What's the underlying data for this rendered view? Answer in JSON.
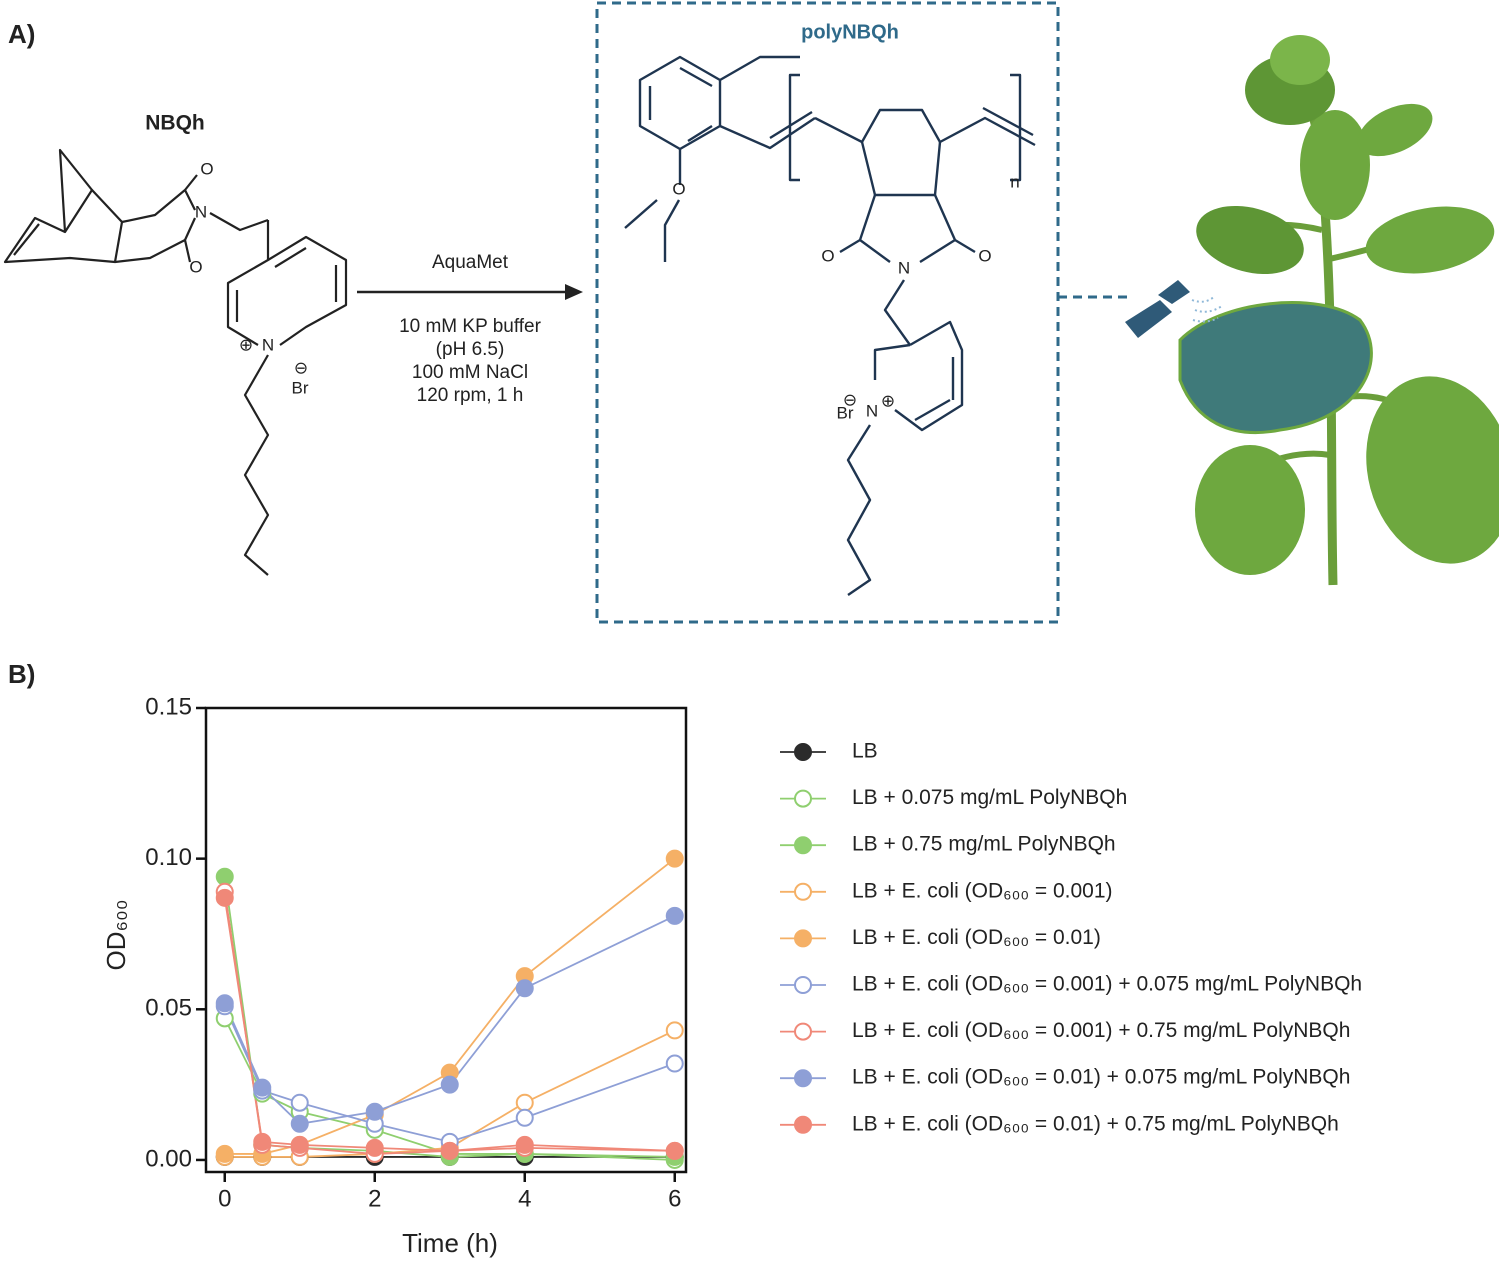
{
  "panel_a": {
    "label": "A)",
    "monomer": {
      "name": "NBQh",
      "atoms": [
        "O",
        "N",
        "O",
        "N",
        "⊕",
        "Br",
        "⊖"
      ]
    },
    "reaction": {
      "catalyst": "AquaMet",
      "conditions": [
        "10 mM KP buffer",
        "(pH 6.5)",
        "100 mM NaCl",
        "120 rpm, 1 h"
      ]
    },
    "polymer": {
      "name": "polyNBQh",
      "atoms": [
        "O",
        "O",
        "N",
        "O",
        "Br",
        "⊖",
        "N",
        "⊕",
        "n"
      ]
    }
  },
  "chart_data": {
    "type": "line",
    "label": "B)",
    "xlabel": "Time (h)",
    "ylabel": "OD₆₀₀",
    "x": [
      0,
      0.5,
      1,
      2,
      3,
      4,
      6
    ],
    "xlim": [
      -0.25,
      6.15
    ],
    "xticks": [
      0,
      2,
      4,
      6
    ],
    "ylim": [
      -0.004,
      0.15
    ],
    "yticks": [
      {
        "value": 0,
        "label": "0.00"
      },
      {
        "value": 0.05,
        "label": "0.05"
      },
      {
        "value": 0.1,
        "label": "0.10"
      },
      {
        "value": 0.15,
        "label": "0.15"
      }
    ],
    "series": [
      {
        "name": "LB",
        "color": "#2b2b2b",
        "filled": true,
        "values": [
          0.001,
          0.001,
          0.001,
          0.001,
          0.001,
          0.001,
          0.001
        ]
      },
      {
        "name": "LB + 0.075 mg/mL PolyNBQh",
        "color": "#8fcf6f",
        "filled": false,
        "values": [
          0.047,
          0.022,
          0.016,
          0.01,
          0.002,
          0.002,
          0.0
        ]
      },
      {
        "name": "LB + 0.75 mg/mL PolyNBQh",
        "color": "#8fcf6f",
        "filled": true,
        "values": [
          0.094,
          0.005,
          0.004,
          0.003,
          0.001,
          0.002,
          0.001
        ]
      },
      {
        "name": "LB + E. coli (OD₆₀₀ = 0.001)",
        "color": "#f5b066",
        "filled": false,
        "values": [
          0.001,
          0.001,
          0.001,
          0.002,
          0.004,
          0.019,
          0.043
        ]
      },
      {
        "name": "LB + E. coli (OD₆₀₀ = 0.01)",
        "color": "#f5b066",
        "filled": true,
        "values": [
          0.002,
          0.002,
          0.005,
          0.015,
          0.029,
          0.061,
          0.1
        ]
      },
      {
        "name": "LB + E. coli (OD₆₀₀ = 0.001) + 0.075 mg/mL PolyNBQh",
        "color": "#8e9fd6",
        "filled": false,
        "values": [
          0.051,
          0.023,
          0.019,
          0.012,
          0.006,
          0.014,
          0.032
        ]
      },
      {
        "name": "LB + E. coli (OD₆₀₀ = 0.001) + 0.75 mg/mL PolyNBQh",
        "color": "#f08878",
        "filled": false,
        "values": [
          0.089,
          0.005,
          0.004,
          0.002,
          0.003,
          0.004,
          0.003
        ]
      },
      {
        "name": "LB + E. coli (OD₆₀₀ = 0.01) + 0.075 mg/mL PolyNBQh",
        "color": "#8e9fd6",
        "filled": true,
        "values": [
          0.052,
          0.024,
          0.012,
          0.016,
          0.025,
          0.057,
          0.081
        ]
      },
      {
        "name": "LB + E. coli (OD₆₀₀ = 0.01) + 0.75 mg/mL PolyNBQh",
        "color": "#f08878",
        "filled": true,
        "values": [
          0.087,
          0.006,
          0.005,
          0.004,
          0.003,
          0.005,
          0.003
        ]
      }
    ]
  }
}
